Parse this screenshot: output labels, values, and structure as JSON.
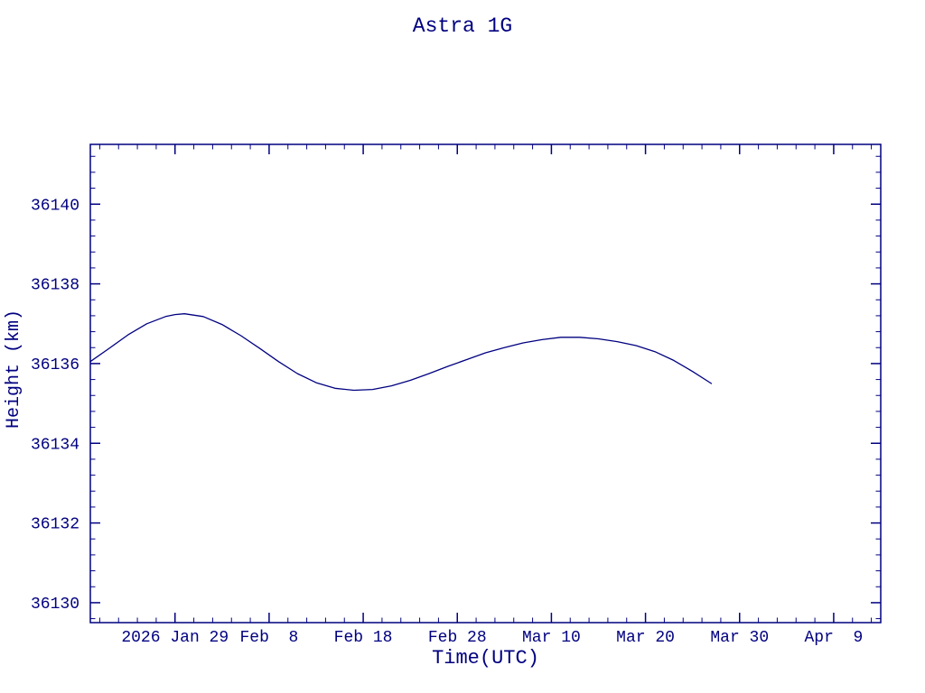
{
  "colors": {
    "accent": "#000080",
    "background": "#ffffff"
  },
  "chart_data": {
    "type": "line",
    "title": "Astra 1G",
    "xlabel": "Time(UTC)",
    "ylabel": "Height (km)",
    "line_color": "#000080",
    "grid": false,
    "legend": "none",
    "x_unit": "days since 2026-01-20",
    "x_domain_days": [
      0,
      84
    ],
    "x_minor_step_days": 2,
    "ylim": [
      36129.5,
      36141.5
    ],
    "y_ticks": [
      36130,
      36132,
      36134,
      36136,
      36138,
      36140
    ],
    "y_minor_step": 0.4,
    "x_ticks": [
      {
        "day": 9,
        "label": "2026 Jan 29"
      },
      {
        "day": 19,
        "label": "Feb  8"
      },
      {
        "day": 29,
        "label": "Feb 18"
      },
      {
        "day": 39,
        "label": "Feb 28"
      },
      {
        "day": 49,
        "label": "Mar 10"
      },
      {
        "day": 59,
        "label": "Mar 20"
      },
      {
        "day": 69,
        "label": "Mar 30"
      },
      {
        "day": 79,
        "label": "Apr  9"
      }
    ],
    "series": [
      {
        "name": "height-km",
        "x_days": [
          0,
          2,
          4,
          6,
          8,
          9,
          10,
          12,
          14,
          16,
          18,
          20,
          22,
          24,
          26,
          28,
          30,
          32,
          34,
          36,
          38,
          40,
          42,
          44,
          46,
          48,
          50,
          52,
          54,
          56,
          58,
          60,
          62,
          64,
          66
        ],
        "values": [
          36136.05,
          36136.38,
          36136.72,
          36137.0,
          36137.18,
          36137.23,
          36137.25,
          36137.18,
          36136.98,
          36136.7,
          36136.38,
          36136.05,
          36135.75,
          36135.52,
          36135.38,
          36135.33,
          36135.35,
          36135.44,
          36135.58,
          36135.75,
          36135.93,
          36136.1,
          36136.27,
          36136.4,
          36136.52,
          36136.6,
          36136.66,
          36136.66,
          36136.62,
          36136.55,
          36136.45,
          36136.3,
          36136.08,
          36135.8,
          36135.5
        ]
      }
    ]
  }
}
